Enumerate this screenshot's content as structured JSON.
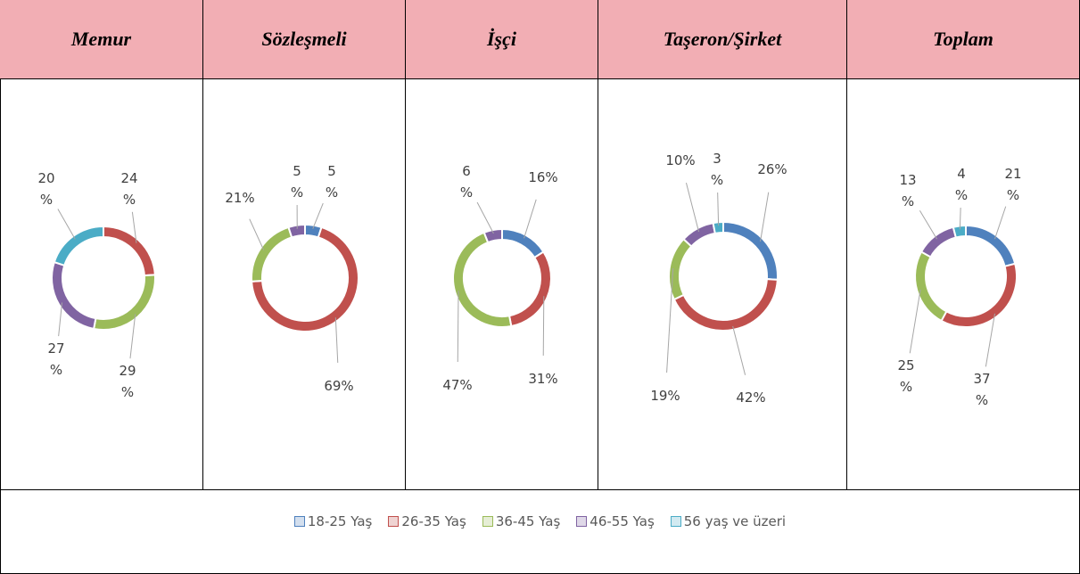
{
  "legend": {
    "categories": [
      "18-25 Yaş",
      "26-35 Yaş",
      "36-45 Yaş",
      "46-55 Yaş",
      "56 yaş ve üzeri"
    ],
    "colors": [
      "#4f81bd",
      "#c0504d",
      "#9bbb59",
      "#8064a2",
      "#4bacc6"
    ]
  },
  "chart_data": [
    {
      "type": "pie",
      "donut": true,
      "title": "Memur",
      "values": [
        0,
        24,
        29,
        27,
        20
      ],
      "value_labels": [
        null,
        "24 %",
        "29 %",
        "27 %",
        "20 %"
      ]
    },
    {
      "type": "pie",
      "donut": true,
      "title": "Sözleşmeli",
      "values": [
        5,
        69,
        21,
        5,
        0
      ],
      "value_labels": [
        "5 %",
        "69%",
        "21%",
        "5 %",
        null
      ]
    },
    {
      "type": "pie",
      "donut": true,
      "title": "İşçi",
      "values": [
        16,
        31,
        47,
        6,
        0
      ],
      "value_labels": [
        "16%",
        "31%",
        "47%",
        "6 %",
        null
      ]
    },
    {
      "type": "pie",
      "donut": true,
      "title": "Taşeron/Şirket",
      "values": [
        26,
        42,
        19,
        10,
        3
      ],
      "value_labels": [
        "26%",
        "42%",
        "19%",
        "10%",
        "3 %"
      ]
    },
    {
      "type": "pie",
      "donut": true,
      "title": "Toplam",
      "values": [
        21,
        37,
        25,
        13,
        4
      ],
      "value_labels": [
        "21 %",
        "37 %",
        "25 %",
        "13 %",
        "4 %"
      ]
    }
  ]
}
